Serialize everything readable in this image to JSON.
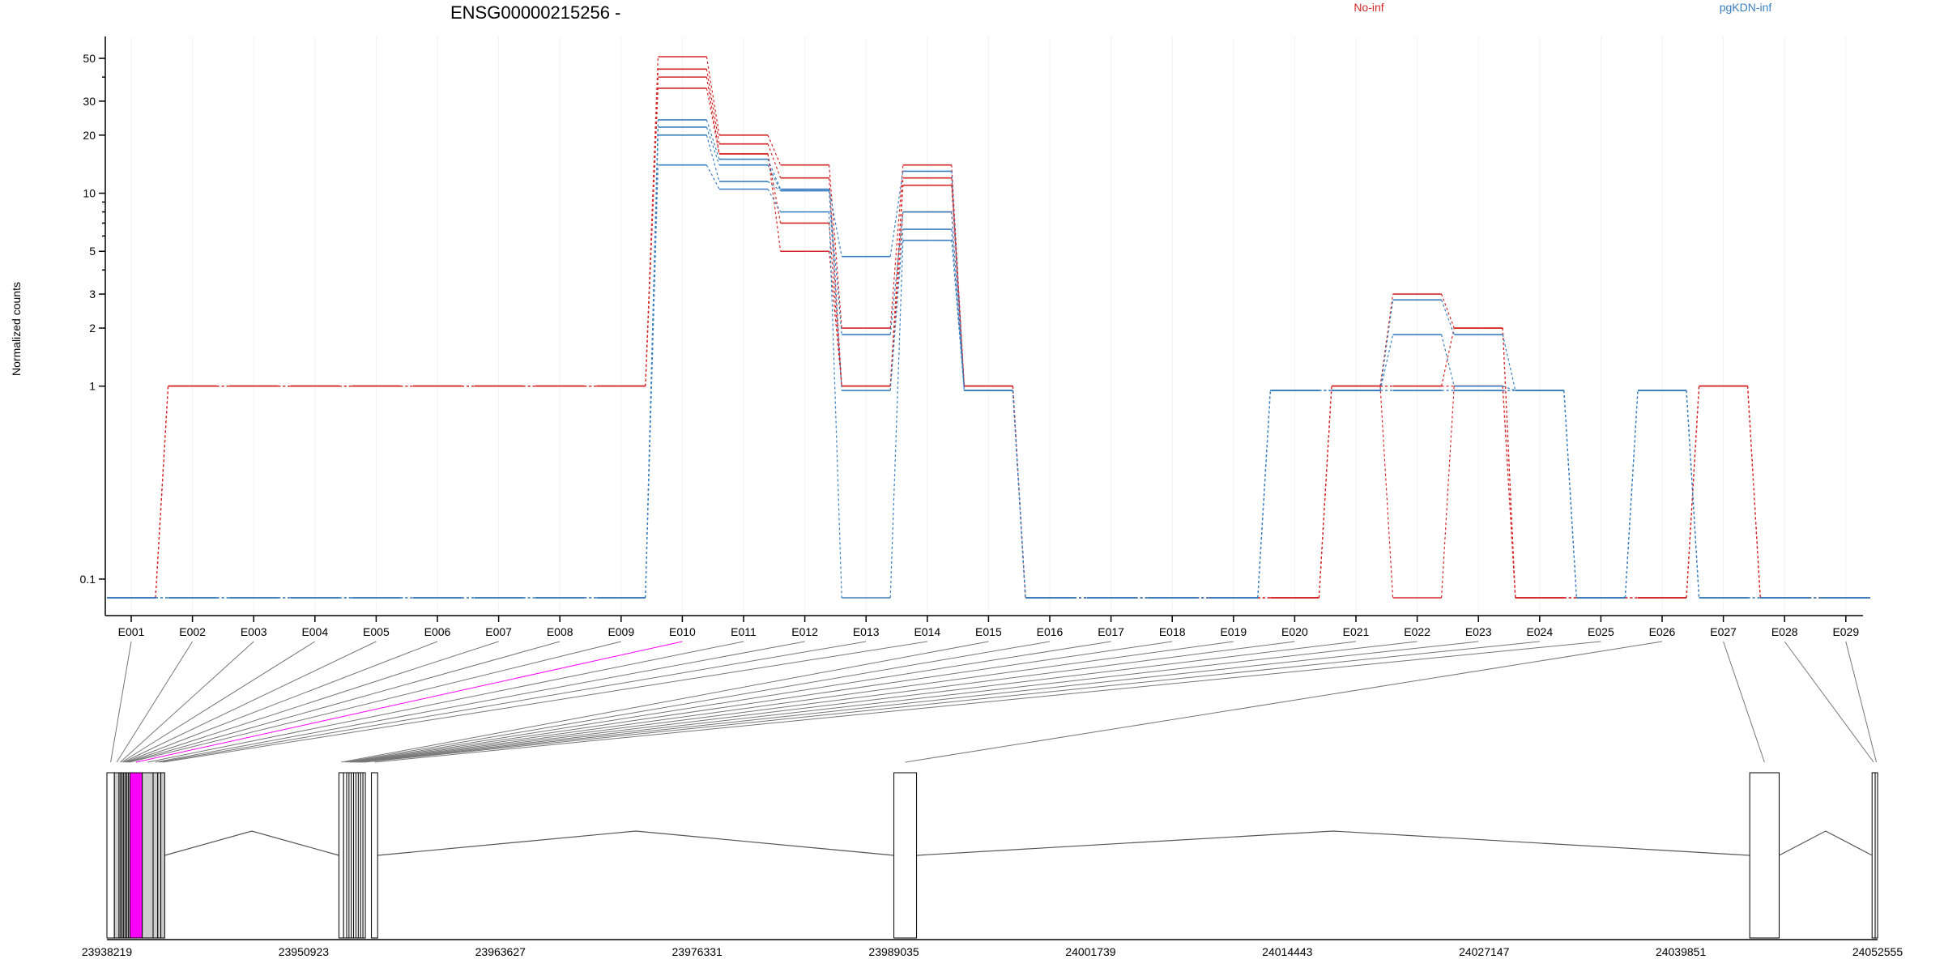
{
  "chart_data": {
    "type": "line",
    "title": "ENSG00000215256 -",
    "ylabel": "Normalized counts",
    "y_scale": "log",
    "ylim": [
      0.07,
      60
    ],
    "y_ticks": [
      {
        "value": 0.1,
        "label": "0.1"
      },
      {
        "value": 1,
        "label": "1"
      },
      {
        "value": 2,
        "label": "2"
      },
      {
        "value": 3,
        "label": "3"
      },
      {
        "value": 5,
        "label": "5"
      },
      {
        "value": 10,
        "label": "10"
      },
      {
        "value": 20,
        "label": "20"
      },
      {
        "value": 30,
        "label": "30"
      },
      {
        "value": 50,
        "label": "50"
      }
    ],
    "categories": [
      "E001",
      "E002",
      "E003",
      "E004",
      "E005",
      "E006",
      "E007",
      "E008",
      "E009",
      "E010",
      "E011",
      "E012",
      "E013",
      "E014",
      "E015",
      "E016",
      "E017",
      "E018",
      "E019",
      "E020",
      "E021",
      "E022",
      "E023",
      "E024",
      "E025",
      "E026",
      "E027",
      "E028",
      "E029"
    ],
    "grid": "vertical-light",
    "legend_position": "top",
    "legend": [
      {
        "label": "No-inf",
        "color": "#d62728"
      },
      {
        "label": "pgKDN-inf",
        "color": "#3a7fbf"
      }
    ],
    "series": [
      {
        "group": "No-inf",
        "color": "#d62728",
        "values": [
          0.08,
          1,
          1,
          1,
          1,
          1,
          1,
          1,
          1,
          51,
          20,
          14,
          2,
          14,
          1,
          0.08,
          0.08,
          0.08,
          0.08,
          0.08,
          1,
          1,
          2,
          0.08,
          0.08,
          0.08,
          1,
          0.08,
          0.08
        ]
      },
      {
        "group": "No-inf",
        "color": "#d62728",
        "values": [
          0.08,
          1,
          1,
          1,
          1,
          1,
          1,
          1,
          1,
          44,
          18,
          12,
          1,
          12,
          1,
          0.08,
          0.08,
          0.08,
          0.08,
          0.08,
          1,
          3,
          2,
          0.08,
          0.08,
          0.08,
          1,
          0.08,
          0.08
        ]
      },
      {
        "group": "No-inf",
        "color": "#d62728",
        "values": [
          0.08,
          1,
          1,
          1,
          1,
          1,
          1,
          1,
          1,
          40,
          16,
          7,
          1,
          11,
          1,
          0.08,
          0.08,
          0.08,
          0.08,
          0.08,
          1,
          1,
          1,
          0.08,
          0.08,
          0.08,
          1,
          0.08,
          0.08
        ]
      },
      {
        "group": "No-inf",
        "color": "#d62728",
        "values": [
          0.08,
          1,
          1,
          1,
          1,
          1,
          1,
          1,
          1,
          35,
          16,
          5,
          1,
          8,
          1,
          0.08,
          0.08,
          0.08,
          0.08,
          0.08,
          1,
          0.08,
          1,
          0.08,
          0.08,
          0.08,
          1,
          0.08,
          0.08
        ]
      },
      {
        "group": "pgKDN-inf",
        "color": "#3a7fbf",
        "values": [
          0.08,
          0.08,
          0.08,
          0.08,
          0.08,
          0.08,
          0.08,
          0.08,
          0.08,
          24,
          15,
          10.5,
          4.7,
          13,
          0.95,
          0.08,
          0.08,
          0.08,
          0.08,
          0.95,
          0.95,
          2.8,
          1.85,
          0.95,
          0.08,
          0.95,
          0.08,
          0.08,
          0.08
        ]
      },
      {
        "group": "pgKDN-inf",
        "color": "#3a7fbf",
        "values": [
          0.08,
          0.08,
          0.08,
          0.08,
          0.08,
          0.08,
          0.08,
          0.08,
          0.08,
          22,
          14,
          10.3,
          1.85,
          8,
          0.95,
          0.08,
          0.08,
          0.08,
          0.08,
          0.95,
          0.95,
          1.85,
          1,
          0.95,
          0.08,
          0.95,
          0.08,
          0.08,
          0.08
        ]
      },
      {
        "group": "pgKDN-inf",
        "color": "#3a7fbf",
        "values": [
          0.08,
          0.08,
          0.08,
          0.08,
          0.08,
          0.08,
          0.08,
          0.08,
          0.08,
          20,
          11.5,
          10.3,
          0.95,
          6.5,
          0.95,
          0.08,
          0.08,
          0.08,
          0.08,
          0.95,
          0.95,
          0.95,
          0.95,
          0.95,
          0.08,
          0.95,
          0.08,
          0.08,
          0.08
        ]
      },
      {
        "group": "pgKDN-inf",
        "color": "#3a7fbf",
        "values": [
          0.08,
          0.08,
          0.08,
          0.08,
          0.08,
          0.08,
          0.08,
          0.08,
          0.08,
          14,
          10.5,
          8,
          0.08,
          5.7,
          0.95,
          0.08,
          0.08,
          0.08,
          0.08,
          0.95,
          0.95,
          0.95,
          0.95,
          0.95,
          0.08,
          0.95,
          0.08,
          0.08,
          0.08
        ]
      }
    ],
    "gene_model": {
      "coordinate_labels": [
        "23938219",
        "23950923",
        "23963627",
        "23976331",
        "23989035",
        "24001739",
        "24014443",
        "24027147",
        "24039851",
        "24052555"
      ],
      "coord_start": 23938219,
      "coord_end": 24052555,
      "highlight_color": "#ff00ff",
      "exons": [
        {
          "id": "E001",
          "start": 23938219,
          "end": 23938700,
          "fill": "#ffffff"
        },
        {
          "id": "E002",
          "start": 23938700,
          "end": 23939000,
          "fill": "#cccccc"
        },
        {
          "id": "E003",
          "start": 23939000,
          "end": 23939100,
          "fill": "#cccccc"
        },
        {
          "id": "E004",
          "start": 23939100,
          "end": 23939200,
          "fill": "#cccccc"
        },
        {
          "id": "E005",
          "start": 23939200,
          "end": 23939300,
          "fill": "#cccccc"
        },
        {
          "id": "E006",
          "start": 23939300,
          "end": 23939400,
          "fill": "#cccccc"
        },
        {
          "id": "E007",
          "start": 23939400,
          "end": 23939500,
          "fill": "#cccccc"
        },
        {
          "id": "E008",
          "start": 23939500,
          "end": 23939600,
          "fill": "#cccccc"
        },
        {
          "id": "E009",
          "start": 23939600,
          "end": 23939700,
          "fill": "#cccccc"
        },
        {
          "id": "E010",
          "start": 23939700,
          "end": 23940500,
          "fill": "#ff00ff"
        },
        {
          "id": "E011",
          "start": 23940500,
          "end": 23941200,
          "fill": "#cccccc"
        },
        {
          "id": "E012",
          "start": 23941200,
          "end": 23941500,
          "fill": "#cccccc"
        },
        {
          "id": "E013",
          "start": 23941500,
          "end": 23941700,
          "fill": "#cccccc"
        },
        {
          "id": "E014",
          "start": 23941700,
          "end": 23941950,
          "fill": "#cccccc"
        },
        {
          "id": "E015",
          "start": 23953200,
          "end": 23953500,
          "fill": "#ffffff"
        },
        {
          "id": "E016",
          "start": 23953500,
          "end": 23953700,
          "fill": "#ffffff"
        },
        {
          "id": "E017",
          "start": 23953700,
          "end": 23953850,
          "fill": "#ffffff"
        },
        {
          "id": "E018",
          "start": 23953850,
          "end": 23954000,
          "fill": "#ffffff"
        },
        {
          "id": "E019",
          "start": 23954000,
          "end": 23954150,
          "fill": "#ffffff"
        },
        {
          "id": "E020",
          "start": 23954150,
          "end": 23954300,
          "fill": "#ffffff"
        },
        {
          "id": "E021",
          "start": 23954300,
          "end": 23954450,
          "fill": "#ffffff"
        },
        {
          "id": "E022",
          "start": 23954450,
          "end": 23954600,
          "fill": "#ffffff"
        },
        {
          "id": "E023",
          "start": 23954600,
          "end": 23954750,
          "fill": "#ffffff"
        },
        {
          "id": "E024",
          "start": 23954750,
          "end": 23954900,
          "fill": "#ffffff"
        },
        {
          "id": "E025",
          "start": 23955300,
          "end": 23955700,
          "fill": "#ffffff"
        },
        {
          "id": "E026",
          "start": 23989035,
          "end": 23990500,
          "fill": "#ffffff"
        },
        {
          "id": "E027",
          "start": 24044300,
          "end": 24046200,
          "fill": "#ffffff"
        },
        {
          "id": "E028",
          "start": 24052200,
          "end": 24052400,
          "fill": "#ffffff"
        },
        {
          "id": "E029",
          "start": 24052400,
          "end": 24052555,
          "fill": "#ffffff"
        }
      ]
    }
  }
}
